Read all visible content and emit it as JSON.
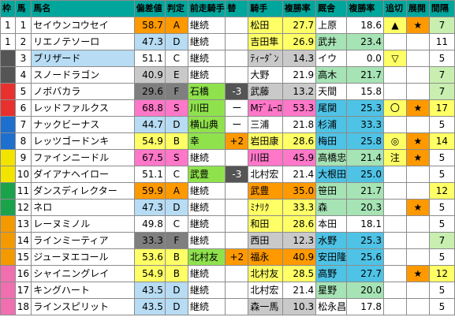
{
  "headers": [
    "枠",
    "馬",
    "馬名",
    "偏差値",
    "判定",
    "前走騎手",
    "替",
    "騎手",
    "複勝率",
    "厩舎",
    "複勝率",
    "追切",
    "展開",
    "間隔"
  ],
  "rows": [
    {
      "waku": "1",
      "uma": "1",
      "name": "セイウンコウセイ",
      "hensa": "58.7",
      "hantei": "A",
      "zenso": "継続",
      "kae": "",
      "jockey": "松田",
      "jrate": "27.7",
      "kyusha": "上原",
      "krate": "18.6",
      "oikiri": "▲",
      "tenkai": "★",
      "kankaku": "7"
    },
    {
      "waku": "1",
      "uma": "2",
      "name": "リエノテソーロ",
      "hensa": "47.3",
      "hantei": "D",
      "zenso": "継続",
      "kae": "",
      "jockey": "吉田隼",
      "jrate": "26.9",
      "kyusha": "武井",
      "krate": "23.4",
      "oikiri": "",
      "tenkai": "",
      "kankaku": "11"
    },
    {
      "waku": "2",
      "uma": "3",
      "name": "ブリザード",
      "hensa": "51.1",
      "hantei": "C",
      "zenso": "継続",
      "kae": "",
      "jockey": "ﾃｨｰﾀﾞﾝ",
      "jrate": "14.3",
      "kyusha": "イウ",
      "krate": "0.0",
      "oikiri": "▽",
      "tenkai": "",
      "kankaku": "5"
    },
    {
      "waku": "2",
      "uma": "4",
      "name": "スノードラゴン",
      "hensa": "40.9",
      "hantei": "E",
      "zenso": "継続",
      "kae": "",
      "jockey": "大野",
      "jrate": "21.9",
      "kyusha": "高木",
      "krate": "21.7",
      "oikiri": "",
      "tenkai": "",
      "kankaku": "7"
    },
    {
      "waku": "3",
      "uma": "5",
      "name": "ノボバカラ",
      "hensa": "29.6",
      "hantei": "F",
      "zenso": "石橋",
      "kae": "-3",
      "jockey": "武藤",
      "jrate": "13.2",
      "kyusha": "天間",
      "krate": "15.8",
      "oikiri": "",
      "tenkai": "",
      "kankaku": "7"
    },
    {
      "waku": "3",
      "uma": "6",
      "name": "レッドファルクス",
      "hensa": "68.8",
      "hantei": "S",
      "zenso": "川田",
      "kae": "ー",
      "jockey": "Mﾃﾞﾑｰﾛ",
      "jrate": "53.3",
      "kyusha": "尾関",
      "krate": "25.3",
      "oikiri": "〇",
      "tenkai": "★",
      "kankaku": "17"
    },
    {
      "waku": "4",
      "uma": "7",
      "name": "ナックビーナス",
      "hensa": "44.7",
      "hantei": "D",
      "zenso": "横山典",
      "kae": "ー",
      "jockey": "三浦",
      "jrate": "21.8",
      "kyusha": "杉浦",
      "krate": "33.3",
      "oikiri": "",
      "tenkai": "",
      "kankaku": "5"
    },
    {
      "waku": "4",
      "uma": "8",
      "name": "レッツゴードンキ",
      "hensa": "54.9",
      "hantei": "B",
      "zenso": "幸",
      "kae": "+2",
      "jockey": "岩田康",
      "jrate": "28.6",
      "kyusha": "梅田",
      "krate": "25.8",
      "oikiri": "◎",
      "tenkai": "★",
      "kankaku": "14"
    },
    {
      "waku": "5",
      "uma": "9",
      "name": "ファインニードル",
      "hensa": "67.5",
      "hantei": "S",
      "zenso": "継続",
      "kae": "",
      "jockey": "川田",
      "jrate": "45.9",
      "kyusha": "高橋忠",
      "krate": "21.4",
      "oikiri": "注",
      "tenkai": "★",
      "kankaku": "5"
    },
    {
      "waku": "5",
      "uma": "10",
      "name": "ダイアナヘイロー",
      "hensa": "51.1",
      "hantei": "C",
      "zenso": "武豊",
      "kae": "-3",
      "jockey": "北村宏",
      "jrate": "21.4",
      "kyusha": "大根田",
      "krate": "25.0",
      "oikiri": "",
      "tenkai": "",
      "kankaku": "5"
    },
    {
      "waku": "6",
      "uma": "11",
      "name": "ダンスディレクター",
      "hensa": "59.9",
      "hantei": "A",
      "zenso": "継続",
      "kae": "",
      "jockey": "武豊",
      "jrate": "35.0",
      "kyusha": "笹田",
      "krate": "21.7",
      "oikiri": "",
      "tenkai": "",
      "kankaku": "12"
    },
    {
      "waku": "6",
      "uma": "12",
      "name": "ネロ",
      "hensa": "47.3",
      "hantei": "D",
      "zenso": "継続",
      "kae": "",
      "jockey": "ﾐﾅﾘｸ",
      "jrate": "33.3",
      "kyusha": "森",
      "krate": "20.3",
      "oikiri": "",
      "tenkai": "★",
      "kankaku": "5"
    },
    {
      "waku": "7",
      "uma": "13",
      "name": "レーヌミノル",
      "hensa": "49.8",
      "hantei": "C",
      "zenso": "継続",
      "kae": "",
      "jockey": "和田",
      "jrate": "28.6",
      "kyusha": "本田",
      "krate": "18.1",
      "oikiri": "",
      "tenkai": "",
      "kankaku": "5"
    },
    {
      "waku": "7",
      "uma": "14",
      "name": "ラインミーティア",
      "hensa": "33.3",
      "hantei": "F",
      "zenso": "継続",
      "kae": "",
      "jockey": "西田",
      "jrate": "12.3",
      "kyusha": "水野",
      "krate": "25.3",
      "oikiri": "",
      "tenkai": "",
      "kankaku": "7"
    },
    {
      "waku": "7",
      "uma": "15",
      "name": "ジューヌエコール",
      "hensa": "53.6",
      "hantei": "B",
      "zenso": "北村友",
      "kae": "+2",
      "jockey": "福永",
      "jrate": "40.9",
      "kyusha": "安田隆",
      "krate": "25.6",
      "oikiri": "",
      "tenkai": "",
      "kankaku": "5"
    },
    {
      "waku": "8",
      "uma": "16",
      "name": "シャイニングレイ",
      "hensa": "54.9",
      "hantei": "B",
      "zenso": "継続",
      "kae": "",
      "jockey": "北村友",
      "jrate": "28.5",
      "kyusha": "高野",
      "krate": "27.7",
      "oikiri": "",
      "tenkai": "★",
      "kankaku": "12"
    },
    {
      "waku": "8",
      "uma": "17",
      "name": "キングハート",
      "hensa": "43.5",
      "hantei": "D",
      "zenso": "継続",
      "kae": "",
      "jockey": "北村宏",
      "jrate": "21.4",
      "kyusha": "星野",
      "krate": "20.0",
      "oikiri": "",
      "tenkai": "",
      "kankaku": "5"
    },
    {
      "waku": "8",
      "uma": "18",
      "name": "ラインスピリット",
      "hensa": "43.5",
      "hantei": "D",
      "zenso": "継続",
      "kae": "",
      "jockey": "森一馬",
      "jrate": "10.3",
      "kyusha": "松永昌",
      "krate": "17.8",
      "oikiri": "",
      "tenkai": "",
      "kankaku": "5"
    }
  ],
  "colors": {
    "waku": {
      "1": "#ffffff",
      "2": "#555555",
      "3": "#e8312f",
      "4": "#1f6fcf",
      "5": "#f3e400",
      "6": "#1aa34a",
      "7": "#f39a00",
      "8": "#f06fb0"
    },
    "header_bg": "#00a69c",
    "light_blue": "#b7dcf4",
    "light_gray": "#c9c9c9",
    "green": "#90e24d",
    "yellow": "#ffff66",
    "pink": "#ff77c8",
    "orange": "#ff9900",
    "dark_gray": "#7f7f7f"
  }
}
